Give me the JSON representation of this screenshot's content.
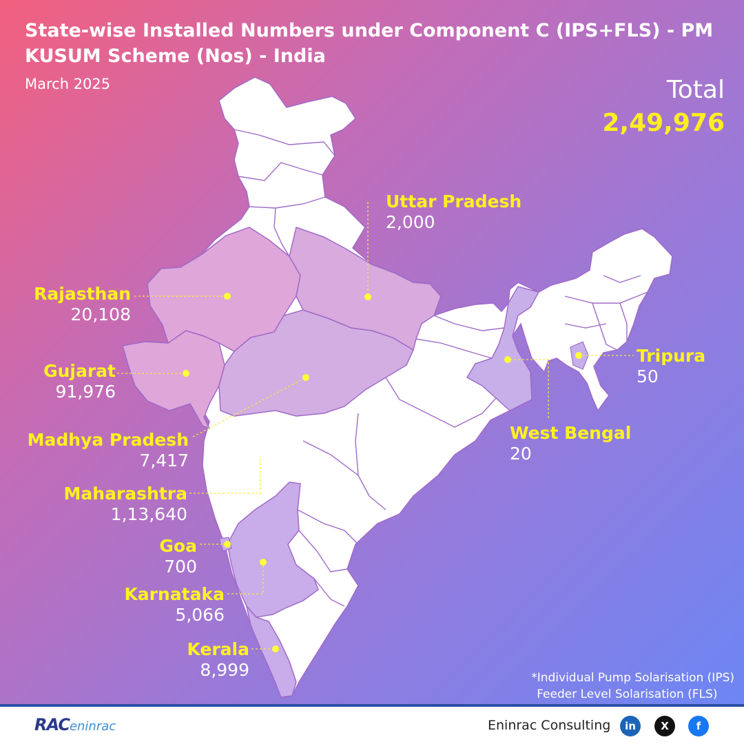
{
  "header": {
    "title": "State-wise Installed Numbers under Component C (IPS+FLS) - PM KUSUM Scheme (Nos) - India",
    "subtitle": "March 2025",
    "total_label": "Total",
    "total_value": "2,49,976"
  },
  "states": [
    {
      "name": "Uttar Pradesh",
      "value": "2,000"
    },
    {
      "name": "Rajasthan",
      "value": "20,108"
    },
    {
      "name": "Gujarat",
      "value": "91,976"
    },
    {
      "name": "Madhya Pradesh",
      "value": "7,417"
    },
    {
      "name": "Maharashtra",
      "value": "1,13,640"
    },
    {
      "name": "Goa",
      "value": "700"
    },
    {
      "name": "Karnataka",
      "value": "5,066"
    },
    {
      "name": "Kerala",
      "value": "8,999"
    },
    {
      "name": "West Bengal",
      "value": "20"
    },
    {
      "name": "Tripura",
      "value": "50"
    }
  ],
  "footnote": {
    "line1": "*Individual Pump Solarisation (IPS)",
    "line2": "Feeder Level Solarisation (FLS)"
  },
  "footer": {
    "logo_main": "RAC",
    "logo_sub": "eninrac",
    "company": "Eninrac Consulting",
    "social": [
      {
        "icon": "linkedin-icon",
        "glyph": "in"
      },
      {
        "icon": "x-icon",
        "glyph": "X"
      },
      {
        "icon": "facebook-icon",
        "glyph": "f"
      }
    ]
  },
  "colors": {
    "highlight_state": "#dba4d8",
    "normal_state": "#ffffff",
    "border": "#9a63c4",
    "label_yellow": "#fff21f",
    "dot": "#ffff3a"
  }
}
